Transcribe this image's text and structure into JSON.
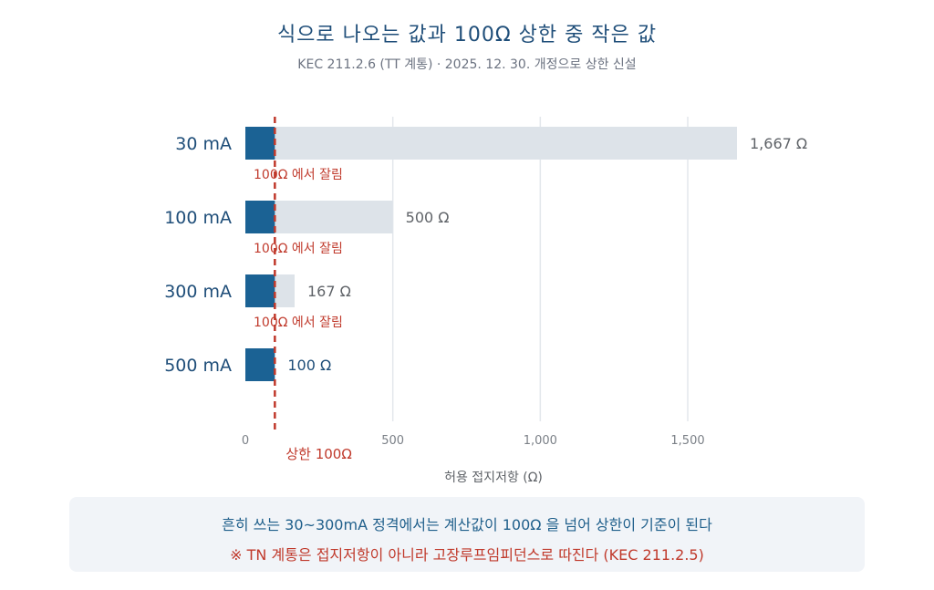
{
  "title": "식으로 나오는 값과 100Ω 상한 중 작은 값",
  "subtitle": "KEC 211.2.6 (TT 계통) · 2025. 12. 30. 개정으로 상한 신설",
  "chart_data": {
    "type": "bar",
    "orientation": "horizontal",
    "categories": [
      "30 mA",
      "100 mA",
      "300 mA",
      "500 mA"
    ],
    "series": [
      {
        "values": [
          1667,
          500,
          167,
          100
        ]
      },
      {
        "values": [
          100,
          100,
          100,
          100
        ]
      }
    ],
    "value_labels": [
      "1,667 Ω",
      "500 Ω",
      "167 Ω",
      "100 Ω"
    ],
    "clip_labels": [
      "100Ω 에서 잘림",
      "100Ω 에서 잘림",
      "100Ω 에서 잘림",
      ""
    ],
    "xlabel": "허용 접지저항 (Ω)",
    "xlim": [
      0,
      1850
    ],
    "xticks": [
      0,
      500,
      1000,
      1500
    ],
    "xtick_labels": [
      "0",
      "500",
      "1,000",
      "1,500"
    ],
    "reference_line": {
      "x": 100,
      "label": "상한 100Ω"
    },
    "grid": "vertical"
  },
  "notes": {
    "line1": "흔히 쓰는 30~300mA 정격에서는 계산값이 100Ω 을 넘어 상한이 기준이 된다",
    "line2": "※ TN 계통은 접지저항이 아니라 고장루프임피던스로 따진다 (KEC 211.2.5)"
  },
  "colors": {
    "formula_bar": "#dde3e9",
    "limit_bar": "#1b6294",
    "limit_line": "#c0392b",
    "clip_label": "#c0392b",
    "category_label": "#1f4e79",
    "value_label": "#5f6368",
    "grid": "#e3e7ec",
    "tick": "#7b8087"
  }
}
